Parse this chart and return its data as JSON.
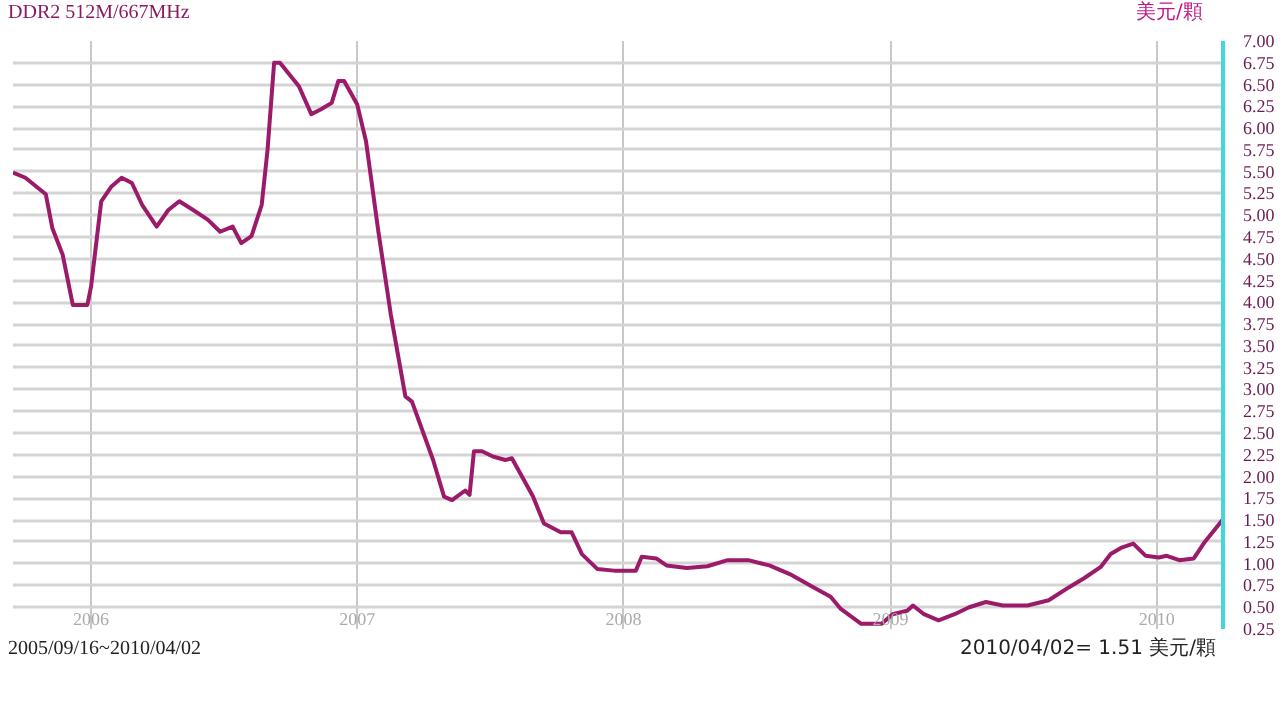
{
  "chart_data": {
    "type": "line",
    "title": "DDR2 512M/667MHz",
    "ylabel": "美元/顆",
    "annotations": [
      "2005/09/16~2010/04/02",
      "2010/04/02= 1.51 美元/顆"
    ],
    "x": [
      "2005-09-16",
      "2005-10-03",
      "2005-10-31",
      "2005-11-09",
      "2005-11-23",
      "2005-12-07",
      "2005-12-27",
      "2006-01-01",
      "2006-01-15",
      "2006-01-29",
      "2006-02-12",
      "2006-02-26",
      "2006-03-12",
      "2006-04-01",
      "2006-04-17",
      "2006-05-02",
      "2006-05-21",
      "2006-06-10",
      "2006-06-27",
      "2006-07-14",
      "2006-07-26",
      "2006-08-09",
      "2006-08-23",
      "2006-08-31",
      "2006-09-09",
      "2006-09-17",
      "2006-10-13",
      "2006-10-30",
      "2006-11-13",
      "2006-11-27",
      "2006-12-06",
      "2006-12-14",
      "2007-01-01",
      "2007-01-13",
      "2007-01-30",
      "2007-02-16",
      "2007-03-08",
      "2007-03-17",
      "2007-04-15",
      "2007-04-30",
      "2007-05-11",
      "2007-05-29",
      "2007-06-04",
      "2007-06-10",
      "2007-06-21",
      "2007-07-06",
      "2007-07-23",
      "2007-08-01",
      "2007-08-30",
      "2007-09-14",
      "2007-10-07",
      "2007-10-22",
      "2007-11-05",
      "2007-11-26",
      "2007-12-19",
      "2008-01-18",
      "2008-01-26",
      "2008-02-15",
      "2008-02-29",
      "2008-03-28",
      "2008-04-25",
      "2008-05-23",
      "2008-06-20",
      "2008-07-19",
      "2008-08-16",
      "2008-09-13",
      "2008-10-11",
      "2008-10-25",
      "2008-11-22",
      "2008-12-20",
      "2009-01-04",
      "2009-01-24",
      "2009-02-01",
      "2009-02-16",
      "2009-03-08",
      "2009-03-30",
      "2009-04-19",
      "2009-05-12",
      "2009-06-04",
      "2009-07-08",
      "2009-08-06",
      "2009-09-03",
      "2009-09-23",
      "2009-10-16",
      "2009-10-30",
      "2009-11-13",
      "2009-11-30",
      "2009-12-17",
      "2010-01-04",
      "2010-01-15",
      "2010-02-01",
      "2010-02-21",
      "2010-03-08",
      "2010-04-02"
    ],
    "series": [
      {
        "color": "#9b1b6a",
        "values": [
          5.49,
          5.43,
          5.24,
          4.85,
          4.55,
          3.97,
          3.97,
          4.18,
          5.16,
          5.33,
          5.43,
          5.37,
          5.12,
          4.87,
          5.06,
          5.16,
          5.06,
          4.95,
          4.81,
          4.87,
          4.68,
          4.76,
          5.12,
          5.75,
          6.75,
          6.75,
          6.48,
          6.16,
          6.22,
          6.29,
          6.54,
          6.54,
          6.27,
          5.85,
          4.81,
          3.86,
          2.92,
          2.86,
          2.19,
          1.77,
          1.73,
          1.84,
          1.79,
          2.29,
          2.29,
          2.23,
          2.19,
          2.21,
          1.77,
          1.46,
          1.36,
          1.36,
          1.11,
          0.94,
          0.92,
          0.92,
          1.08,
          1.06,
          0.98,
          0.95,
          0.97,
          1.04,
          1.04,
          0.98,
          0.88,
          0.75,
          0.62,
          0.48,
          0.31,
          0.31,
          0.42,
          0.46,
          0.52,
          0.42,
          0.35,
          0.42,
          0.5,
          0.56,
          0.52,
          0.52,
          0.58,
          0.73,
          0.83,
          0.96,
          1.11,
          1.18,
          1.23,
          1.09,
          1.07,
          1.09,
          1.04,
          1.06,
          1.25,
          1.51
        ]
      }
    ],
    "xlim": [
      "2005-09-16",
      "2010-04-02"
    ],
    "xticks": [
      {
        "value": "2006-01-01",
        "label": "2006"
      },
      {
        "value": "2007-01-01",
        "label": "2007"
      },
      {
        "value": "2008-01-01",
        "label": "2008"
      },
      {
        "value": "2009-01-01",
        "label": "2009"
      },
      {
        "value": "2010-01-01",
        "label": "2010"
      }
    ],
    "ylim": [
      0.25,
      7.0
    ],
    "yticks": [
      {
        "value": 0.25,
        "label": "0.25"
      },
      {
        "value": 0.5,
        "label": "0.50"
      },
      {
        "value": 0.75,
        "label": "0.75"
      },
      {
        "value": 1.0,
        "label": "1.00"
      },
      {
        "value": 1.25,
        "label": "1.25"
      },
      {
        "value": 1.5,
        "label": "1.50"
      },
      {
        "value": 1.75,
        "label": "1.75"
      },
      {
        "value": 2.0,
        "label": "2.00"
      },
      {
        "value": 2.25,
        "label": "2.25"
      },
      {
        "value": 2.5,
        "label": "2.50"
      },
      {
        "value": 2.75,
        "label": "2.75"
      },
      {
        "value": 3.0,
        "label": "3.00"
      },
      {
        "value": 3.25,
        "label": "3.25"
      },
      {
        "value": 3.5,
        "label": "3.50"
      },
      {
        "value": 3.75,
        "label": "3.75"
      },
      {
        "value": 4.0,
        "label": "4.00"
      },
      {
        "value": 4.25,
        "label": "4.25"
      },
      {
        "value": 4.5,
        "label": "4.50"
      },
      {
        "value": 4.75,
        "label": "4.75"
      },
      {
        "value": 5.0,
        "label": "5.00"
      },
      {
        "value": 5.25,
        "label": "5.25"
      },
      {
        "value": 5.5,
        "label": "5.50"
      },
      {
        "value": 5.75,
        "label": "5.75"
      },
      {
        "value": 6.0,
        "label": "6.00"
      },
      {
        "value": 6.25,
        "label": "6.25"
      },
      {
        "value": 6.5,
        "label": "6.50"
      },
      {
        "value": 6.75,
        "label": "6.75"
      },
      {
        "value": 7.0,
        "label": "7.00"
      }
    ],
    "grid": true
  }
}
